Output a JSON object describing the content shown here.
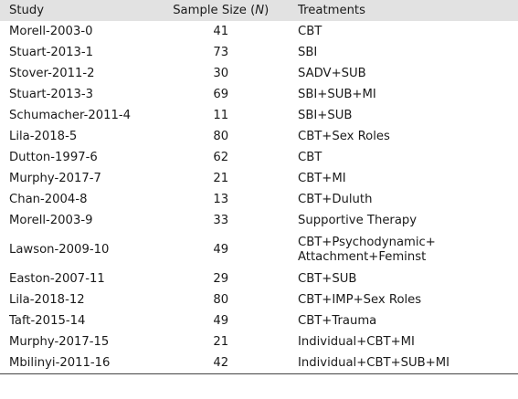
{
  "table": {
    "headers": {
      "study": "Study",
      "sample_prefix": "Sample Size (",
      "sample_n": "N",
      "sample_suffix": ")",
      "treatments": "Treatments"
    },
    "rows": [
      {
        "study": "Morell-2003-0",
        "n": "41",
        "treatments": [
          "CBT"
        ]
      },
      {
        "study": "Stuart-2013-1",
        "n": "73",
        "treatments": [
          "SBI"
        ]
      },
      {
        "study": "Stover-2011-2",
        "n": "30",
        "treatments": [
          "SADV+SUB"
        ]
      },
      {
        "study": "Stuart-2013-3",
        "n": "69",
        "treatments": [
          "SBI+SUB+MI"
        ]
      },
      {
        "study": "Schumacher-2011-4",
        "n": "11",
        "treatments": [
          "SBI+SUB"
        ]
      },
      {
        "study": "Lila-2018-5",
        "n": "80",
        "treatments": [
          "CBT+Sex Roles"
        ]
      },
      {
        "study": "Dutton-1997-6",
        "n": "62",
        "treatments": [
          "CBT"
        ]
      },
      {
        "study": "Murphy-2017-7",
        "n": "21",
        "treatments": [
          "CBT+MI"
        ]
      },
      {
        "study": "Chan-2004-8",
        "n": "13",
        "treatments": [
          "CBT+Duluth"
        ]
      },
      {
        "study": "Morell-2003-9",
        "n": "33",
        "treatments": [
          "Supportive Therapy"
        ]
      },
      {
        "study": "Lawson-2009-10",
        "n": "49",
        "treatments": [
          "CBT+Psychodynamic+",
          "Attachment+Feminst"
        ]
      },
      {
        "study": "Easton-2007-11",
        "n": "29",
        "treatments": [
          "CBT+SUB"
        ]
      },
      {
        "study": "Lila-2018-12",
        "n": "80",
        "treatments": [
          "CBT+IMP+Sex Roles"
        ]
      },
      {
        "study": "Taft-2015-14",
        "n": "49",
        "treatments": [
          "CBT+Trauma"
        ]
      },
      {
        "study": "Murphy-2017-15",
        "n": "21",
        "treatments": [
          "Individual+CBT+MI"
        ]
      },
      {
        "study": "Mbilinyi-2011-16",
        "n": "42",
        "treatments": [
          "Individual+CBT+SUB+MI"
        ]
      }
    ]
  }
}
